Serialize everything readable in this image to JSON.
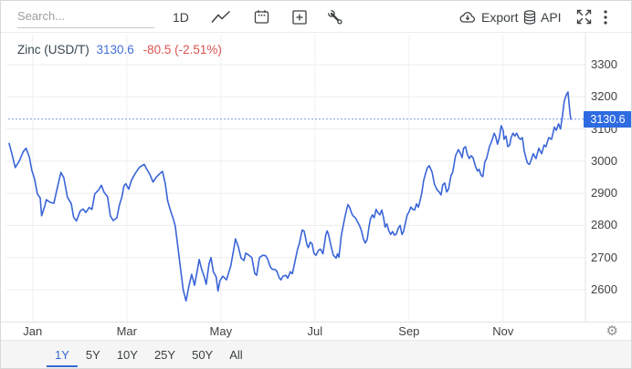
{
  "toolbar": {
    "search_placeholder": "Search...",
    "interval_label": "1D",
    "export_label": "Export",
    "api_label": "API",
    "icon_names": [
      "line-chart",
      "calendar",
      "add-compare",
      "tools",
      "cloud-download",
      "database",
      "expand",
      "kebab-menu",
      "gear"
    ]
  },
  "icons": {
    "gear": "⚙"
  },
  "instrument": {
    "name": "Zinc (USD/T)",
    "price": "3130.6",
    "change_text": "-80.5 (-2.51%)"
  },
  "colors": {
    "line_blue": "#3a65d8",
    "badge_blue": "#2e6be2",
    "price_blue": "#4170d8",
    "negative_red": "#d9534f",
    "grid": "#ededed",
    "dotted_price_line": "#7b97e4",
    "active_tab_blue": "#3568d4"
  },
  "tabs": {
    "items": [
      {
        "label": "1Y",
        "active": true
      },
      {
        "label": "5Y",
        "active": false
      },
      {
        "label": "10Y",
        "active": false
      },
      {
        "label": "25Y",
        "active": false
      },
      {
        "label": "50Y",
        "active": false
      },
      {
        "label": "All",
        "active": false
      }
    ]
  },
  "chart_data": {
    "type": "line",
    "title": "Zinc (USD/T)",
    "series_name": "Zinc",
    "unit": "USD/T",
    "current_value": 3130.6,
    "change": -80.5,
    "change_pct": "-2.51%",
    "grid": true,
    "line_color": "#3a65d8",
    "x_axis": {
      "tick_labels": [
        "Jan",
        "Mar",
        "May",
        "Jul",
        "Sep",
        "Nov"
      ],
      "tick_positions_months": [
        0,
        2,
        4,
        6,
        8,
        10
      ],
      "range_months": [
        -0.52,
        11.75
      ]
    },
    "y_axis": {
      "ticks": [
        2600,
        2700,
        2800,
        2900,
        3000,
        3100,
        3200,
        3300
      ],
      "range": [
        2501,
        3393
      ]
    },
    "points": [
      [
        -0.5,
        3055
      ],
      [
        -0.44,
        3022
      ],
      [
        -0.37,
        2980
      ],
      [
        -0.28,
        3002
      ],
      [
        -0.2,
        3030
      ],
      [
        -0.14,
        3040
      ],
      [
        -0.07,
        3012
      ],
      [
        -0.02,
        2972
      ],
      [
        0.04,
        2945
      ],
      [
        0.1,
        2898
      ],
      [
        0.16,
        2886
      ],
      [
        0.19,
        2830
      ],
      [
        0.26,
        2862
      ],
      [
        0.29,
        2880
      ],
      [
        0.37,
        2872
      ],
      [
        0.45,
        2869
      ],
      [
        0.53,
        2921
      ],
      [
        0.6,
        2965
      ],
      [
        0.66,
        2949
      ],
      [
        0.74,
        2887
      ],
      [
        0.82,
        2868
      ],
      [
        0.87,
        2826
      ],
      [
        0.93,
        2814
      ],
      [
        1.01,
        2845
      ],
      [
        1.07,
        2851
      ],
      [
        1.13,
        2840
      ],
      [
        1.2,
        2856
      ],
      [
        1.26,
        2850
      ],
      [
        1.32,
        2898
      ],
      [
        1.4,
        2910
      ],
      [
        1.46,
        2925
      ],
      [
        1.52,
        2902
      ],
      [
        1.59,
        2890
      ],
      [
        1.65,
        2830
      ],
      [
        1.71,
        2815
      ],
      [
        1.79,
        2824
      ],
      [
        1.84,
        2862
      ],
      [
        1.9,
        2890
      ],
      [
        1.94,
        2923
      ],
      [
        1.98,
        2930
      ],
      [
        2.04,
        2913
      ],
      [
        2.1,
        2941
      ],
      [
        2.18,
        2962
      ],
      [
        2.27,
        2981
      ],
      [
        2.37,
        2990
      ],
      [
        2.43,
        2974
      ],
      [
        2.49,
        2959
      ],
      [
        2.56,
        2935
      ],
      [
        2.62,
        2949
      ],
      [
        2.7,
        2961
      ],
      [
        2.76,
        2968
      ],
      [
        2.82,
        2930
      ],
      [
        2.87,
        2876
      ],
      [
        2.93,
        2846
      ],
      [
        2.99,
        2820
      ],
      [
        3.03,
        2798
      ],
      [
        3.09,
        2730
      ],
      [
        3.15,
        2658
      ],
      [
        3.2,
        2600
      ],
      [
        3.26,
        2565
      ],
      [
        3.32,
        2611
      ],
      [
        3.38,
        2648
      ],
      [
        3.44,
        2614
      ],
      [
        3.5,
        2661
      ],
      [
        3.54,
        2694
      ],
      [
        3.59,
        2665
      ],
      [
        3.65,
        2639
      ],
      [
        3.69,
        2617
      ],
      [
        3.75,
        2681
      ],
      [
        3.79,
        2700
      ],
      [
        3.84,
        2656
      ],
      [
        3.9,
        2640
      ],
      [
        3.94,
        2596
      ],
      [
        3.98,
        2628
      ],
      [
        4.04,
        2642
      ],
      [
        4.12,
        2631
      ],
      [
        4.21,
        2673
      ],
      [
        4.27,
        2722
      ],
      [
        4.31,
        2758
      ],
      [
        4.37,
        2734
      ],
      [
        4.43,
        2698
      ],
      [
        4.49,
        2691
      ],
      [
        4.53,
        2714
      ],
      [
        4.6,
        2707
      ],
      [
        4.66,
        2700
      ],
      [
        4.72,
        2651
      ],
      [
        4.76,
        2645
      ],
      [
        4.82,
        2700
      ],
      [
        4.89,
        2707
      ],
      [
        4.95,
        2706
      ],
      [
        4.99,
        2697
      ],
      [
        5.05,
        2671
      ],
      [
        5.09,
        2664
      ],
      [
        5.15,
        2663
      ],
      [
        5.19,
        2658
      ],
      [
        5.24,
        2637
      ],
      [
        5.28,
        2631
      ],
      [
        5.32,
        2642
      ],
      [
        5.38,
        2645
      ],
      [
        5.42,
        2636
      ],
      [
        5.48,
        2656
      ],
      [
        5.52,
        2650
      ],
      [
        5.57,
        2684
      ],
      [
        5.63,
        2726
      ],
      [
        5.67,
        2744
      ],
      [
        5.73,
        2786
      ],
      [
        5.77,
        2782
      ],
      [
        5.83,
        2740
      ],
      [
        5.86,
        2731
      ],
      [
        5.9,
        2748
      ],
      [
        5.94,
        2743
      ],
      [
        5.98,
        2713
      ],
      [
        6.02,
        2707
      ],
      [
        6.08,
        2724
      ],
      [
        6.12,
        2726
      ],
      [
        6.17,
        2712
      ],
      [
        6.23,
        2770
      ],
      [
        6.26,
        2783
      ],
      [
        6.29,
        2771
      ],
      [
        6.35,
        2730
      ],
      [
        6.39,
        2708
      ],
      [
        6.45,
        2698
      ],
      [
        6.48,
        2712
      ],
      [
        6.51,
        2701
      ],
      [
        6.56,
        2769
      ],
      [
        6.64,
        2828
      ],
      [
        6.7,
        2865
      ],
      [
        6.74,
        2856
      ],
      [
        6.78,
        2838
      ],
      [
        6.82,
        2828
      ],
      [
        6.86,
        2824
      ],
      [
        6.91,
        2810
      ],
      [
        6.95,
        2799
      ],
      [
        6.99,
        2783
      ],
      [
        7.03,
        2758
      ],
      [
        7.07,
        2745
      ],
      [
        7.11,
        2756
      ],
      [
        7.15,
        2797
      ],
      [
        7.18,
        2820
      ],
      [
        7.22,
        2833
      ],
      [
        7.26,
        2824
      ],
      [
        7.3,
        2850
      ],
      [
        7.34,
        2839
      ],
      [
        7.38,
        2833
      ],
      [
        7.42,
        2848
      ],
      [
        7.46,
        2824
      ],
      [
        7.49,
        2795
      ],
      [
        7.53,
        2805
      ],
      [
        7.57,
        2783
      ],
      [
        7.61,
        2772
      ],
      [
        7.65,
        2781
      ],
      [
        7.69,
        2770
      ],
      [
        7.73,
        2773
      ],
      [
        7.77,
        2791
      ],
      [
        7.81,
        2800
      ],
      [
        7.85,
        2772
      ],
      [
        7.88,
        2780
      ],
      [
        7.92,
        2805
      ],
      [
        7.96,
        2832
      ],
      [
        8.0,
        2842
      ],
      [
        8.04,
        2857
      ],
      [
        8.08,
        2850
      ],
      [
        8.12,
        2848
      ],
      [
        8.16,
        2867
      ],
      [
        8.2,
        2857
      ],
      [
        8.23,
        2874
      ],
      [
        8.27,
        2900
      ],
      [
        8.31,
        2939
      ],
      [
        8.35,
        2961
      ],
      [
        8.39,
        2979
      ],
      [
        8.43,
        2986
      ],
      [
        8.49,
        2966
      ],
      [
        8.54,
        2928
      ],
      [
        8.6,
        2910
      ],
      [
        8.64,
        2904
      ],
      [
        8.68,
        2895
      ],
      [
        8.72,
        2927
      ],
      [
        8.76,
        2932
      ],
      [
        8.8,
        2904
      ],
      [
        8.84,
        2913
      ],
      [
        8.89,
        2954
      ],
      [
        8.93,
        2966
      ],
      [
        8.99,
        3017
      ],
      [
        9.05,
        3036
      ],
      [
        9.09,
        3025
      ],
      [
        9.13,
        3011
      ],
      [
        9.16,
        3040
      ],
      [
        9.2,
        3045
      ],
      [
        9.24,
        3021
      ],
      [
        9.28,
        3008
      ],
      [
        9.32,
        3017
      ],
      [
        9.36,
        3011
      ],
      [
        9.42,
        2980
      ],
      [
        9.46,
        2969
      ],
      [
        9.49,
        2975
      ],
      [
        9.53,
        2956
      ],
      [
        9.57,
        2952
      ],
      [
        9.61,
        2997
      ],
      [
        9.65,
        3008
      ],
      [
        9.71,
        3045
      ],
      [
        9.75,
        3059
      ],
      [
        9.81,
        3087
      ],
      [
        9.84,
        3078
      ],
      [
        9.88,
        3053
      ],
      [
        9.92,
        3073
      ],
      [
        9.96,
        3110
      ],
      [
        10.0,
        3096
      ],
      [
        10.02,
        3068
      ],
      [
        10.06,
        3078
      ],
      [
        10.1,
        3045
      ],
      [
        10.14,
        3050
      ],
      [
        10.17,
        3073
      ],
      [
        10.21,
        3087
      ],
      [
        10.25,
        3078
      ],
      [
        10.29,
        3087
      ],
      [
        10.33,
        3073
      ],
      [
        10.37,
        3068
      ],
      [
        10.41,
        3073
      ],
      [
        10.45,
        3031
      ],
      [
        10.49,
        3008
      ],
      [
        10.52,
        2994
      ],
      [
        10.56,
        2990
      ],
      [
        10.6,
        3005
      ],
      [
        10.64,
        3023
      ],
      [
        10.7,
        3008
      ],
      [
        10.76,
        3040
      ],
      [
        10.82,
        3023
      ],
      [
        10.87,
        3050
      ],
      [
        10.91,
        3045
      ],
      [
        10.97,
        3073
      ],
      [
        11.03,
        3068
      ],
      [
        11.09,
        3106
      ],
      [
        11.13,
        3096
      ],
      [
        11.18,
        3116
      ],
      [
        11.22,
        3100
      ],
      [
        11.26,
        3140
      ],
      [
        11.3,
        3186
      ],
      [
        11.34,
        3205
      ],
      [
        11.38,
        3215
      ],
      [
        11.42,
        3152
      ],
      [
        11.44,
        3130.6
      ]
    ]
  }
}
